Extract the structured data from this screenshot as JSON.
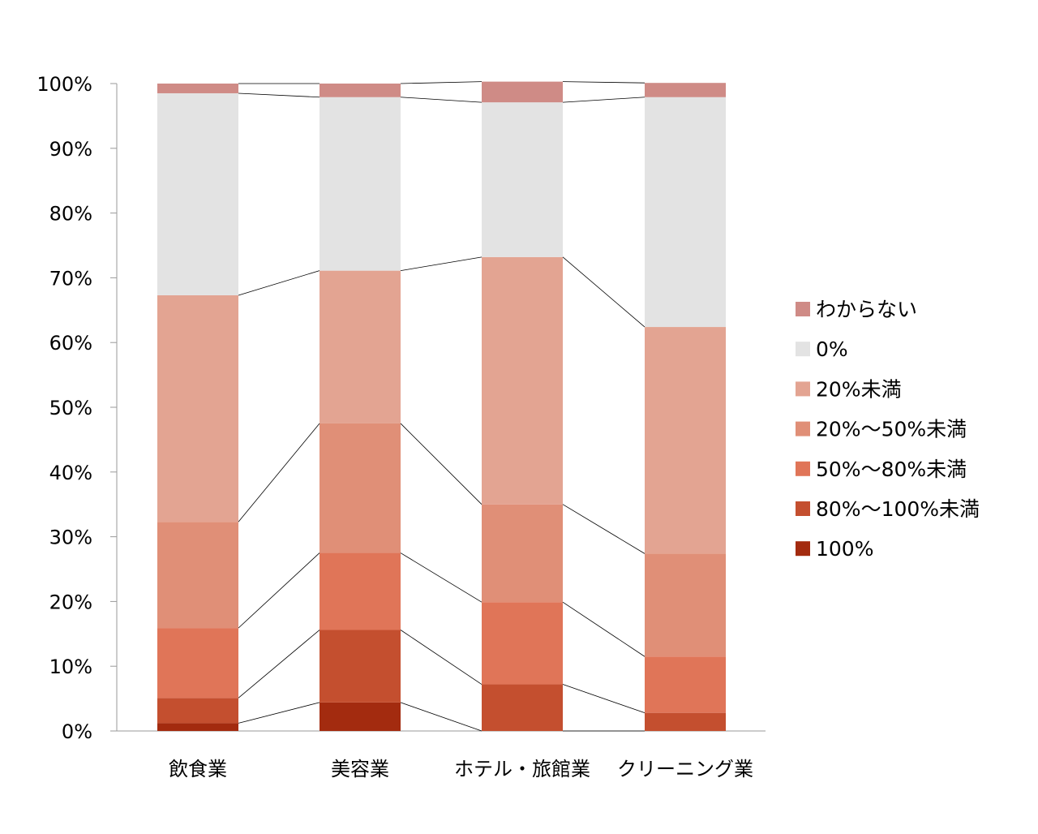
{
  "chart_data": {
    "type": "bar",
    "stacked": true,
    "normalized": true,
    "series_lines": true,
    "categories": [
      "飲食業",
      "美容業",
      "ホテル・旅館業",
      "クリーニング業"
    ],
    "y_ticks": [
      "0%",
      "10%",
      "20%",
      "30%",
      "40%",
      "50%",
      "60%",
      "70%",
      "80%",
      "90%",
      "100%"
    ],
    "ylim": [
      0,
      100
    ],
    "legend_position": "right",
    "series": [
      {
        "name": "100%",
        "color": "#a32b0f",
        "values": [
          1.2,
          4.4,
          0,
          0
        ]
      },
      {
        "name": "80%～100%未満",
        "color": "#c44f2f",
        "values": [
          3.9,
          11.2,
          7.2,
          2.8
        ]
      },
      {
        "name": "50%～80%未満",
        "color": "#e07558",
        "values": [
          10.8,
          11.9,
          12.7,
          8.7
        ]
      },
      {
        "name": "20%～50%未満",
        "color": "#e08f77",
        "values": [
          16.4,
          20.0,
          15.1,
          15.9
        ]
      },
      {
        "name": "20%未満",
        "color": "#e3a492",
        "values": [
          35.0,
          23.6,
          38.2,
          35.0
        ]
      },
      {
        "name": "0%",
        "color": "#e3e3e3",
        "values": [
          31.2,
          26.8,
          23.9,
          35.5
        ]
      },
      {
        "name": "わからない",
        "color": "#cf8b86",
        "values": [
          1.5,
          2.1,
          3.2,
          2.2
        ]
      }
    ]
  }
}
